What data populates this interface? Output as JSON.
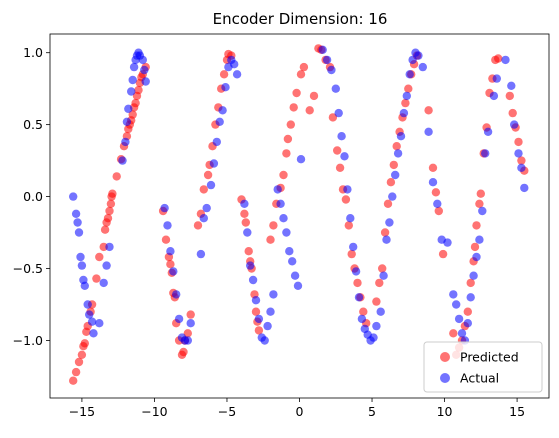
{
  "chart_data": {
    "type": "scatter",
    "title": "Encoder Dimension: 16",
    "xlabel": "",
    "ylabel": "",
    "xlim": [
      -17.2,
      17.2
    ],
    "ylim": [
      -1.4,
      1.13
    ],
    "xticks": [
      {
        "value": -15,
        "label": "−15"
      },
      {
        "value": -10,
        "label": "−10"
      },
      {
        "value": -5,
        "label": "−5"
      },
      {
        "value": 0,
        "label": "0"
      },
      {
        "value": 5,
        "label": "5"
      },
      {
        "value": 10,
        "label": "10"
      },
      {
        "value": 15,
        "label": "15"
      }
    ],
    "yticks": [
      {
        "value": -1.0,
        "label": "−1.0"
      },
      {
        "value": -0.5,
        "label": "−0.5"
      },
      {
        "value": 0.0,
        "label": "0.0"
      },
      {
        "value": 0.5,
        "label": "0.5"
      },
      {
        "value": 1.0,
        "label": "1.0"
      }
    ],
    "grid": false,
    "legend_position": "bottom-right",
    "series": [
      {
        "name": "Predicted",
        "color": "#ff0000",
        "alpha": 0.55,
        "points": [
          [
            -15.6,
            -1.28
          ],
          [
            -15.4,
            -1.22
          ],
          [
            -15.2,
            -1.15
          ],
          [
            -15.0,
            -1.1
          ],
          [
            -14.9,
            -1.04
          ],
          [
            -14.8,
            -1.02
          ],
          [
            -14.7,
            -0.94
          ],
          [
            -14.6,
            -0.9
          ],
          [
            -14.4,
            -0.8
          ],
          [
            -14.3,
            -0.75
          ],
          [
            -14.0,
            -0.57
          ],
          [
            -13.8,
            -0.42
          ],
          [
            -13.5,
            -0.35
          ],
          [
            -13.4,
            -0.23
          ],
          [
            -13.3,
            -0.18
          ],
          [
            -13.2,
            -0.15
          ],
          [
            -13.1,
            -0.1
          ],
          [
            -13.0,
            -0.05
          ],
          [
            -12.95,
            0.0
          ],
          [
            -12.9,
            0.02
          ],
          [
            -12.6,
            0.14
          ],
          [
            -12.3,
            0.26
          ],
          [
            -12.1,
            0.35
          ],
          [
            -11.9,
            0.42
          ],
          [
            -11.8,
            0.47
          ],
          [
            -11.7,
            0.5
          ],
          [
            -11.6,
            0.53
          ],
          [
            -11.5,
            0.57
          ],
          [
            -11.4,
            0.62
          ],
          [
            -11.3,
            0.65
          ],
          [
            -11.2,
            0.7
          ],
          [
            -11.1,
            0.74
          ],
          [
            -11.0,
            0.79
          ],
          [
            -10.9,
            0.83
          ],
          [
            -10.8,
            0.85
          ],
          [
            -10.6,
            0.9
          ],
          [
            -9.4,
            -0.1
          ],
          [
            -9.2,
            -0.3
          ],
          [
            -9.0,
            -0.42
          ],
          [
            -8.9,
            -0.47
          ],
          [
            -8.8,
            -0.53
          ],
          [
            -8.7,
            -0.67
          ],
          [
            -8.6,
            -0.7
          ],
          [
            -8.5,
            -0.88
          ],
          [
            -8.3,
            -1.0
          ],
          [
            -8.1,
            -1.1
          ],
          [
            -8.0,
            -1.08
          ],
          [
            -7.9,
            -1.0
          ],
          [
            -7.7,
            -0.95
          ],
          [
            -7.5,
            -0.82
          ],
          [
            -7.0,
            -0.2
          ],
          [
            -6.8,
            -0.12
          ],
          [
            -6.6,
            0.05
          ],
          [
            -6.3,
            0.15
          ],
          [
            -6.2,
            0.22
          ],
          [
            -6.0,
            0.35
          ],
          [
            -5.8,
            0.5
          ],
          [
            -5.6,
            0.62
          ],
          [
            -5.4,
            0.75
          ],
          [
            -5.2,
            0.85
          ],
          [
            -5.0,
            0.95
          ],
          [
            -4.9,
            0.99
          ],
          [
            -4.7,
            0.98
          ],
          [
            -4.0,
            -0.02
          ],
          [
            -3.8,
            -0.12
          ],
          [
            -3.7,
            -0.18
          ],
          [
            -3.5,
            -0.38
          ],
          [
            -3.4,
            -0.45
          ],
          [
            -3.3,
            -0.5
          ],
          [
            -3.1,
            -0.68
          ],
          [
            -3.0,
            -0.8
          ],
          [
            -2.9,
            -0.87
          ],
          [
            -2.8,
            -0.93
          ],
          [
            -2.0,
            -0.3
          ],
          [
            -1.8,
            -0.2
          ],
          [
            -1.6,
            -0.05
          ],
          [
            -1.3,
            0.06
          ],
          [
            -1.1,
            0.15
          ],
          [
            -0.9,
            0.3
          ],
          [
            -0.8,
            0.4
          ],
          [
            -0.6,
            0.5
          ],
          [
            -0.4,
            0.62
          ],
          [
            -0.2,
            0.72
          ],
          [
            0.1,
            0.85
          ],
          [
            0.3,
            0.9
          ],
          [
            0.7,
            0.6
          ],
          [
            1.0,
            0.7
          ],
          [
            1.3,
            1.03
          ],
          [
            1.5,
            1.02
          ],
          [
            1.8,
            0.95
          ],
          [
            2.1,
            0.9
          ],
          [
            2.3,
            0.55
          ],
          [
            2.6,
            0.32
          ],
          [
            2.8,
            0.2
          ],
          [
            3.0,
            0.05
          ],
          [
            3.2,
            -0.02
          ],
          [
            3.4,
            -0.2
          ],
          [
            3.6,
            -0.4
          ],
          [
            3.8,
            -0.5
          ],
          [
            4.0,
            -0.6
          ],
          [
            4.2,
            -0.7
          ],
          [
            4.4,
            -0.8
          ],
          [
            4.6,
            -0.88
          ],
          [
            5.3,
            -0.73
          ],
          [
            5.5,
            -0.6
          ],
          [
            5.7,
            -0.5
          ],
          [
            5.9,
            -0.25
          ],
          [
            6.1,
            -0.05
          ],
          [
            6.3,
            0.1
          ],
          [
            6.5,
            0.22
          ],
          [
            6.7,
            0.35
          ],
          [
            6.9,
            0.45
          ],
          [
            7.1,
            0.55
          ],
          [
            7.3,
            0.65
          ],
          [
            7.5,
            0.75
          ],
          [
            7.7,
            0.85
          ],
          [
            7.9,
            0.92
          ],
          [
            8.1,
            0.98
          ],
          [
            8.9,
            0.6
          ],
          [
            9.2,
            0.2
          ],
          [
            9.4,
            0.03
          ],
          [
            9.6,
            -0.1
          ],
          [
            9.9,
            -0.4
          ],
          [
            10.6,
            -0.95
          ],
          [
            10.8,
            -1.1
          ],
          [
            11.0,
            -1.05
          ],
          [
            11.2,
            -1.0
          ],
          [
            11.4,
            -0.9
          ],
          [
            11.6,
            -0.8
          ],
          [
            11.8,
            -0.6
          ],
          [
            12.0,
            -0.45
          ],
          [
            12.1,
            -0.35
          ],
          [
            12.2,
            -0.2
          ],
          [
            12.4,
            -0.05
          ],
          [
            12.5,
            0.02
          ],
          [
            12.7,
            0.3
          ],
          [
            12.9,
            0.48
          ],
          [
            13.1,
            0.72
          ],
          [
            13.3,
            0.82
          ],
          [
            13.5,
            0.95
          ],
          [
            13.7,
            0.96
          ],
          [
            14.5,
            0.7
          ],
          [
            14.7,
            0.58
          ],
          [
            14.9,
            0.48
          ],
          [
            15.1,
            0.38
          ],
          [
            15.3,
            0.25
          ],
          [
            15.5,
            0.18
          ]
        ]
      },
      {
        "name": "Actual",
        "color": "#0000ff",
        "alpha": 0.55,
        "points": [
          [
            -15.6,
            0.0
          ],
          [
            -15.4,
            -0.12
          ],
          [
            -15.3,
            -0.18
          ],
          [
            -15.2,
            -0.25
          ],
          [
            -15.1,
            -0.42
          ],
          [
            -15.0,
            -0.48
          ],
          [
            -14.9,
            -0.58
          ],
          [
            -14.8,
            -0.62
          ],
          [
            -14.6,
            -0.75
          ],
          [
            -14.5,
            -0.82
          ],
          [
            -14.3,
            -0.87
          ],
          [
            -14.2,
            -0.95
          ],
          [
            -13.8,
            -0.88
          ],
          [
            -13.5,
            -0.6
          ],
          [
            -13.3,
            -0.48
          ],
          [
            -13.1,
            -0.35
          ],
          [
            -12.2,
            0.25
          ],
          [
            -12.0,
            0.38
          ],
          [
            -11.9,
            0.52
          ],
          [
            -11.8,
            0.61
          ],
          [
            -11.6,
            0.73
          ],
          [
            -11.5,
            0.81
          ],
          [
            -11.4,
            0.9
          ],
          [
            -11.3,
            0.95
          ],
          [
            -11.2,
            0.98
          ],
          [
            -11.1,
            1.0
          ],
          [
            -11.0,
            0.98
          ],
          [
            -10.8,
            0.95
          ],
          [
            -10.7,
            0.88
          ],
          [
            -10.6,
            0.8
          ],
          [
            -9.3,
            -0.08
          ],
          [
            -9.1,
            -0.2
          ],
          [
            -8.9,
            -0.38
          ],
          [
            -8.7,
            -0.52
          ],
          [
            -8.5,
            -0.68
          ],
          [
            -8.3,
            -0.85
          ],
          [
            -8.1,
            -0.98
          ],
          [
            -7.9,
            -1.0
          ],
          [
            -7.7,
            -1.0
          ],
          [
            -7.5,
            -0.88
          ],
          [
            -6.8,
            -0.4
          ],
          [
            -6.6,
            -0.15
          ],
          [
            -6.4,
            -0.08
          ],
          [
            -6.1,
            0.08
          ],
          [
            -5.9,
            0.23
          ],
          [
            -5.7,
            0.38
          ],
          [
            -5.5,
            0.52
          ],
          [
            -5.3,
            0.6
          ],
          [
            -5.1,
            0.76
          ],
          [
            -4.9,
            0.9
          ],
          [
            -4.7,
            0.95
          ],
          [
            -4.5,
            0.92
          ],
          [
            -4.3,
            0.85
          ],
          [
            -3.8,
            -0.05
          ],
          [
            -3.6,
            -0.25
          ],
          [
            -3.4,
            -0.48
          ],
          [
            -3.2,
            -0.58
          ],
          [
            -3.0,
            -0.72
          ],
          [
            -2.8,
            -0.85
          ],
          [
            -2.6,
            -0.98
          ],
          [
            -2.4,
            -1.0
          ],
          [
            -2.2,
            -0.9
          ],
          [
            -2.0,
            -0.8
          ],
          [
            -1.8,
            -0.68
          ],
          [
            -1.5,
            0.05
          ],
          [
            -1.3,
            -0.05
          ],
          [
            -1.1,
            -0.15
          ],
          [
            -0.9,
            -0.25
          ],
          [
            -0.7,
            -0.38
          ],
          [
            -0.5,
            -0.45
          ],
          [
            -0.3,
            -0.55
          ],
          [
            -0.1,
            -0.62
          ],
          [
            0.1,
            0.26
          ],
          [
            1.6,
            1.02
          ],
          [
            1.9,
            0.95
          ],
          [
            2.2,
            0.88
          ],
          [
            2.5,
            0.75
          ],
          [
            2.7,
            0.58
          ],
          [
            2.9,
            0.42
          ],
          [
            3.1,
            0.28
          ],
          [
            3.3,
            0.05
          ],
          [
            3.5,
            -0.15
          ],
          [
            3.7,
            -0.35
          ],
          [
            3.9,
            -0.52
          ],
          [
            4.1,
            -0.7
          ],
          [
            4.3,
            -0.85
          ],
          [
            4.5,
            -0.92
          ],
          [
            4.7,
            -0.96
          ],
          [
            4.9,
            -1.0
          ],
          [
            5.1,
            -0.98
          ],
          [
            5.3,
            -0.9
          ],
          [
            5.6,
            -0.8
          ],
          [
            5.8,
            -0.55
          ],
          [
            6.0,
            -0.3
          ],
          [
            6.2,
            -0.18
          ],
          [
            6.4,
            0.0
          ],
          [
            6.6,
            0.15
          ],
          [
            6.8,
            0.3
          ],
          [
            7.0,
            0.42
          ],
          [
            7.2,
            0.58
          ],
          [
            7.4,
            0.7
          ],
          [
            7.6,
            0.85
          ],
          [
            7.8,
            0.95
          ],
          [
            8.0,
            1.0
          ],
          [
            8.2,
            0.98
          ],
          [
            8.5,
            0.9
          ],
          [
            8.9,
            0.45
          ],
          [
            9.2,
            0.1
          ],
          [
            9.5,
            -0.05
          ],
          [
            9.8,
            -0.3
          ],
          [
            10.2,
            -0.32
          ],
          [
            10.6,
            -0.68
          ],
          [
            10.8,
            -0.75
          ],
          [
            11.0,
            -0.85
          ],
          [
            11.2,
            -0.95
          ],
          [
            11.4,
            -1.0
          ],
          [
            11.6,
            -0.88
          ],
          [
            11.8,
            -0.7
          ],
          [
            12.0,
            -0.55
          ],
          [
            12.2,
            -0.42
          ],
          [
            12.4,
            -0.3
          ],
          [
            12.6,
            -0.1
          ],
          [
            12.8,
            0.3
          ],
          [
            13.0,
            0.45
          ],
          [
            13.4,
            0.7
          ],
          [
            13.6,
            0.82
          ],
          [
            14.2,
            0.95
          ],
          [
            14.6,
            0.77
          ],
          [
            14.8,
            0.5
          ],
          [
            15.1,
            0.3
          ],
          [
            15.3,
            0.2
          ],
          [
            15.5,
            0.06
          ]
        ]
      }
    ]
  }
}
